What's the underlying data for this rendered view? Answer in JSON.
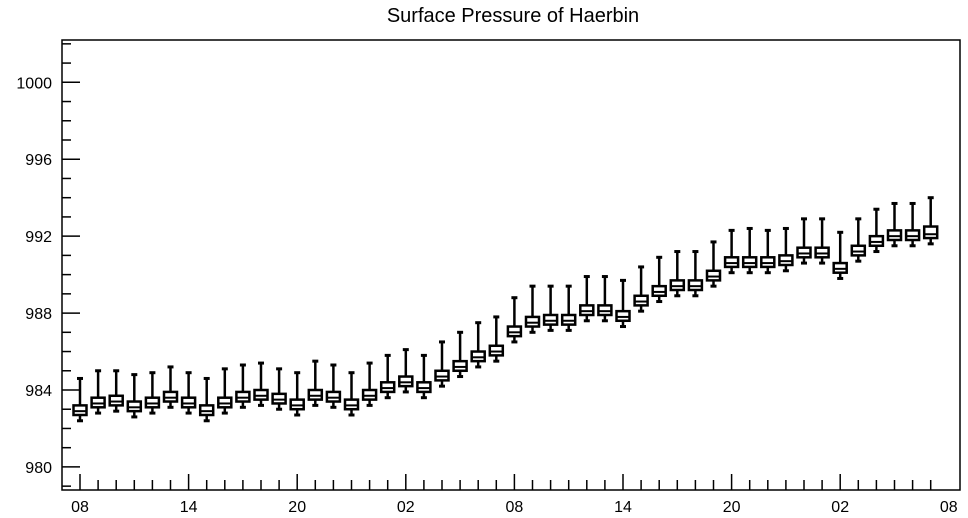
{
  "chart_data": {
    "type": "box",
    "title": "Surface Pressure of Haerbin",
    "xlabel": "",
    "ylabel": "",
    "ylim": [
      978.8,
      1002.2
    ],
    "y_ticks": [
      980,
      984,
      988,
      992,
      996,
      1000
    ],
    "x_tick_labels": [
      "08",
      "14",
      "20",
      "02",
      "08",
      "14",
      "20",
      "02",
      "08"
    ],
    "x_tick_indices": [
      0,
      6,
      12,
      18,
      24,
      30,
      36,
      42,
      48
    ],
    "grid": false,
    "series": [
      {
        "box_low": [
          982.7,
          983.1,
          983.2,
          982.9,
          983.1,
          983.4,
          983.1,
          982.7,
          983.1,
          983.4,
          983.5,
          983.3,
          983.0,
          983.5,
          983.4,
          983.0,
          983.5,
          983.9,
          984.2,
          983.9,
          984.5,
          985.0,
          985.5,
          985.8,
          986.8,
          987.3,
          987.4,
          987.4,
          987.9,
          987.9,
          987.6,
          988.4,
          988.9,
          989.2,
          989.2,
          989.7,
          990.4,
          990.4,
          990.4,
          990.5,
          990.9,
          990.9,
          990.1,
          991.0,
          991.5,
          991.8,
          991.8,
          991.9
        ],
        "median": [
          982.9,
          983.3,
          983.4,
          983.1,
          983.3,
          983.6,
          983.3,
          982.9,
          983.3,
          983.6,
          983.7,
          983.5,
          983.2,
          983.7,
          983.6,
          983.2,
          983.7,
          984.1,
          984.4,
          984.1,
          984.7,
          985.2,
          985.7,
          986.0,
          987.0,
          987.5,
          987.6,
          987.6,
          988.1,
          988.1,
          987.8,
          988.6,
          989.1,
          989.4,
          989.4,
          989.9,
          990.6,
          990.6,
          990.6,
          990.7,
          991.1,
          991.1,
          990.3,
          991.2,
          991.7,
          992.0,
          992.0,
          992.1
        ],
        "box_high": [
          983.2,
          983.6,
          983.7,
          983.4,
          983.6,
          983.9,
          983.6,
          983.2,
          983.6,
          983.9,
          984.0,
          983.8,
          983.5,
          984.0,
          983.9,
          983.5,
          984.0,
          984.4,
          984.7,
          984.4,
          985.0,
          985.5,
          986.0,
          986.3,
          987.3,
          987.8,
          987.9,
          987.9,
          988.4,
          988.4,
          988.1,
          988.9,
          989.4,
          989.7,
          989.7,
          990.2,
          990.9,
          990.9,
          990.9,
          991.0,
          991.4,
          991.4,
          990.6,
          991.5,
          992.0,
          992.3,
          992.3,
          992.5
        ],
        "whisker_low": [
          982.4,
          982.8,
          982.9,
          982.6,
          982.8,
          983.1,
          982.8,
          982.4,
          982.8,
          983.1,
          983.2,
          983.0,
          982.7,
          983.2,
          983.1,
          982.7,
          983.2,
          983.6,
          983.9,
          983.6,
          984.2,
          984.7,
          985.2,
          985.5,
          986.5,
          987.0,
          987.1,
          987.1,
          987.6,
          987.6,
          987.3,
          988.1,
          988.6,
          988.9,
          988.9,
          989.4,
          990.1,
          990.1,
          990.1,
          990.2,
          990.6,
          990.6,
          989.8,
          990.7,
          991.2,
          991.5,
          991.5,
          991.6
        ],
        "whisker_high": [
          984.6,
          985.0,
          985.0,
          984.8,
          984.9,
          985.2,
          984.9,
          984.6,
          985.1,
          985.3,
          985.4,
          985.1,
          984.9,
          985.5,
          985.3,
          984.9,
          985.4,
          985.8,
          986.1,
          985.8,
          986.5,
          987.0,
          987.5,
          987.8,
          988.8,
          989.4,
          989.4,
          989.4,
          989.9,
          989.9,
          989.7,
          990.4,
          990.9,
          991.2,
          991.2,
          991.7,
          992.3,
          992.4,
          992.3,
          992.4,
          992.9,
          992.9,
          992.2,
          992.9,
          993.4,
          993.7,
          993.7,
          994.0
        ]
      }
    ]
  }
}
